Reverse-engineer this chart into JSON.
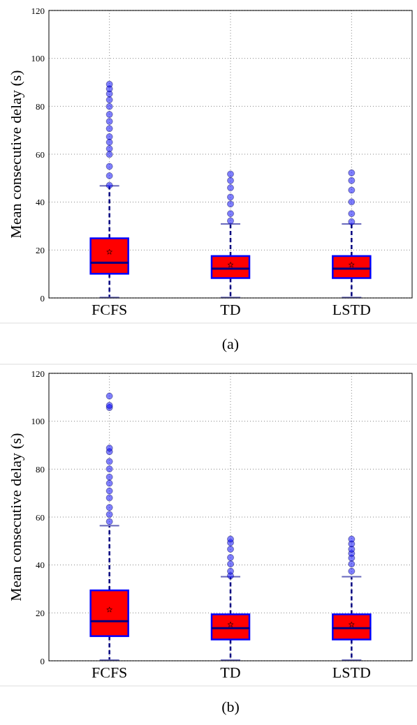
{
  "chart_data": [
    {
      "type": "box",
      "categories": [
        "FCFS",
        "TD",
        "LSTD"
      ],
      "ylabel": "Mean consecutive delay (s)",
      "ylim": [
        0,
        120
      ],
      "yticks": [
        0,
        20,
        40,
        60,
        80,
        100,
        120
      ],
      "grid": true,
      "color": "#ff0000",
      "marker": "star",
      "annotations": [
        "(a)"
      ],
      "boxes": [
        {
          "low": 0.2,
          "q1": 10.1,
          "median": 14.7,
          "q3": 24.9,
          "high": 46.8,
          "mean": 19.2,
          "outliers": [
            47,
            51,
            54.9,
            59.9,
            62.3,
            65,
            67.3,
            70.7,
            73.7,
            76.6,
            79.9,
            82.7,
            85.2,
            87.3,
            89.2
          ]
        },
        {
          "low": 0.2,
          "q1": 8.3,
          "median": 12.2,
          "q3": 17.5,
          "high": 30.9,
          "mean": 13.8,
          "outliers": [
            32.2,
            35.2,
            39.2,
            42.1,
            46,
            49,
            51.7
          ]
        },
        {
          "low": 0.2,
          "q1": 8.3,
          "median": 12.2,
          "q3": 17.5,
          "high": 30.9,
          "mean": 13.8,
          "outliers": [
            31.8,
            35.2,
            40.1,
            45,
            49,
            52.2
          ]
        }
      ]
    },
    {
      "type": "box",
      "categories": [
        "FCFS",
        "TD",
        "LSTD"
      ],
      "ylabel": "Mean consecutive delay (s)",
      "ylim": [
        0,
        120
      ],
      "yticks": [
        0,
        20,
        40,
        60,
        80,
        100,
        120
      ],
      "grid": true,
      "color": "#ff0000",
      "marker": "star",
      "annotations": [
        "(b)"
      ],
      "boxes": [
        {
          "low": 0.3,
          "q1": 10.3,
          "median": 16.5,
          "q3": 29.4,
          "high": 56.4,
          "mean": 21.3,
          "outliers": [
            58.1,
            61.1,
            64,
            68,
            70.9,
            74.1,
            76.7,
            80.1,
            83.2,
            87.3,
            88.8,
            105.7,
            106.6,
            110.5
          ]
        },
        {
          "low": 0.3,
          "q1": 8.9,
          "median": 13.6,
          "q3": 19.4,
          "high": 35.1,
          "mean": 15.1,
          "outliers": [
            35.5,
            37.4,
            40.4,
            43.1,
            46.6,
            49.3,
            50.8
          ]
        },
        {
          "low": 0.3,
          "q1": 8.9,
          "median": 13.6,
          "q3": 19.4,
          "high": 35.1,
          "mean": 15.1,
          "outliers": [
            37.4,
            40.4,
            42.9,
            44.8,
            46.6,
            48.8,
            50.8
          ]
        }
      ]
    }
  ]
}
